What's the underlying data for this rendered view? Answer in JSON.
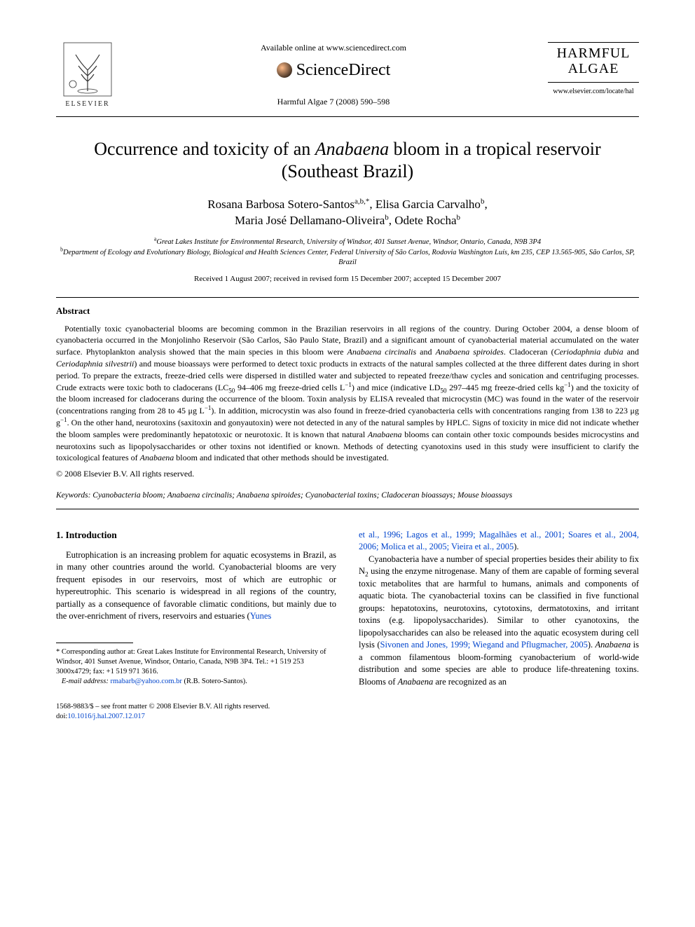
{
  "header": {
    "publisher_name": "ELSEVIER",
    "available_line": "Available online at www.sciencedirect.com",
    "sd_logo_text": "ScienceDirect",
    "journal_ref": "Harmful Algae 7 (2008) 590–598",
    "brand_title_line1": "HARMFUL",
    "brand_title_line2": "ALGAE",
    "brand_url": "www.elsevier.com/locate/hal"
  },
  "title": {
    "pre": "Occurrence and toxicity of an ",
    "ital": "Anabaena",
    "post": " bloom in a tropical reservoir (Southeast Brazil)"
  },
  "authors": {
    "a1_name": "Rosana Barbosa Sotero-Santos",
    "a1_sup": "a,b,*",
    "a2_name": "Elisa Garcia Carvalho",
    "a2_sup": "b",
    "a3_name": "Maria José Dellamano-Oliveira",
    "a3_sup": "b",
    "a4_name": "Odete Rocha",
    "a4_sup": "b"
  },
  "affiliations": {
    "a_sup": "a",
    "a_text": "Great Lakes Institute for Environmental Research, University of Windsor, 401 Sunset Avenue, Windsor, Ontario, Canada, N9B 3P4",
    "b_sup": "b",
    "b_text": "Department of Ecology and Evolutionary Biology, Biological and Health Sciences Center, Federal University of São Carlos, Rodovia Washington Luís, km 235, CEP 13.565-905, São Carlos, SP, Brazil"
  },
  "dates": "Received 1 August 2007; received in revised form 15 December 2007; accepted 15 December 2007",
  "abstract": {
    "heading": "Abstract",
    "body_html": "Potentially toxic cyanobacterial blooms are becoming common in the Brazilian reservoirs in all regions of the country. During October 2004, a dense bloom of cyanobacteria occurred in the Monjolinho Reservoir (São Carlos, São Paulo State, Brazil) and a significant amount of cyanobacterial material accumulated on the water surface. Phytoplankton analysis showed that the main species in this bloom were <i>Anabaena circinalis</i> and <i>Anabaena spiroides</i>. Cladoceran (<i>Ceriodaphnia dubia</i> and <i>Ceriodaphnia silvestrii</i>) and mouse bioassays were performed to detect toxic products in extracts of the natural samples collected at the three different dates during in short period. To prepare the extracts, freeze-dried cells were dispersed in distilled water and subjected to repeated freeze/thaw cycles and sonication and centrifuging processes. Crude extracts were toxic both to cladocerans (LC<sub>50</sub> 94–406 mg freeze-dried cells L<sup>−1</sup>) and mice (indicative LD<sub>50</sub> 297–445 mg freeze-dried cells kg<sup>−1</sup>) and the toxicity of the bloom increased for cladocerans during the occurrence of the bloom. Toxin analysis by ELISA revealed that microcystin (MC) was found in the water of the reservoir (concentrations ranging from 28 to 45 μg L<sup>−1</sup>). In addition, microcystin was also found in freeze-dried cyanobacteria cells with concentrations ranging from 138 to 223 μg g<sup>−1</sup>. On the other hand, neurotoxins (saxitoxin and gonyautoxin) were not detected in any of the natural samples by HPLC. Signs of toxicity in mice did not indicate whether the bloom samples were predominantly hepatotoxic or neurotoxic. It is known that natural <i>Anabaena</i> blooms can contain other toxic compounds besides microcystins and neurotoxins such as lipopolysaccharides or other toxins not identified or known. Methods of detecting cyanotoxins used in this study were insufficient to clarify the toxicological features of <i>Anabaena</i> bloom and indicated that other methods should be investigated.",
    "copyright": "© 2008 Elsevier B.V. All rights reserved."
  },
  "keywords": {
    "label": "Keywords:",
    "text": " Cyanobacteria bloom; Anabaena circinalis; Anabaena spiroides; Cyanobacterial toxins; Cladoceran bioassays; Mouse bioassays"
  },
  "intro": {
    "heading": "1. Introduction",
    "left_html": "Eutrophication is an increasing problem for aquatic ecosystems in Brazil, as in many other countries around the world. Cyanobacterial blooms are very frequent episodes in our reservoirs, most of which are eutrophic or hypereutrophic. This scenario is widespread in all regions of the country, partially as a consequence of favorable climatic conditions, but mainly due to the over-enrichment of rivers, reservoirs and estuaries (<span class=\"blue-link\">Yunes</span>",
    "right_top_html": "<span class=\"blue-link\">et al., 1996; Lagos et al., 1999; Magalhães et al., 2001; Soares et al., 2004, 2006; Molica et al., 2005; Vieira et al., 2005</span>).",
    "right_body_html": "Cyanobacteria have a number of special properties besides their ability to fix N<sub>2</sub> using the enzyme nitrogenase. Many of them are capable of forming several toxic metabolites that are harmful to humans, animals and components of aquatic biota. The cyanobacterial toxins can be classified in five functional groups: hepatotoxins, neurotoxins, cytotoxins, dermatotoxins, and irritant toxins (e.g. lipopolysaccharides). Similar to other cyanotoxins, the lipopolysaccharides can also be released into the aquatic ecosystem during cell lysis (<span class=\"blue-link\">Sivonen and Jones, 1999; Wiegand and Pflugmacher, 2005</span>). <i>Anabaena</i> is a common filamentous bloom-forming cyanobacterium of world-wide distribution and some species are able to produce life-threatening toxins. Blooms of <i>Anabaena</i> are recognized as an"
  },
  "footnote": {
    "corr_marker": "*",
    "corr_text": " Corresponding author at: Great Lakes Institute for Environmental Research, University of Windsor, 401 Sunset Avenue, Windsor, Ontario, Canada, N9B 3P4. Tel.: +1 519 253 3000x4729; fax: +1 519 971 3616.",
    "email_label": "E-mail address:",
    "email_value": " rmabarb@yahoo.com.br",
    "email_attrib": " (R.B. Sotero-Santos)."
  },
  "footer": {
    "left_line1": "1568-9883/$ – see front matter © 2008 Elsevier B.V. All rights reserved.",
    "doi_prefix": "doi:",
    "doi_value": "10.1016/j.hal.2007.12.017"
  },
  "colors": {
    "link_blue": "#0044cc",
    "text": "#000000",
    "background": "#ffffff"
  },
  "typography": {
    "body_family": "Times New Roman, serif",
    "title_fontsize_pt": 19,
    "author_fontsize_pt": 13,
    "abstract_fontsize_pt": 9,
    "body_fontsize_pt": 9.5,
    "footnote_fontsize_pt": 8
  }
}
